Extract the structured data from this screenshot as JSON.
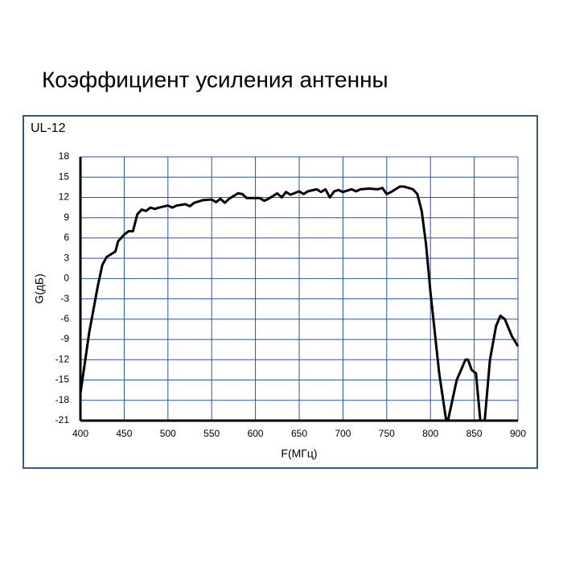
{
  "chart_data": {
    "type": "line",
    "title": "Коэффициент усиления антенны",
    "subtitle": "UL-12",
    "xlabel": "F(МГц)",
    "ylabel": "G(дБ)",
    "color": "#000000",
    "grid": true,
    "xlim": [
      400,
      900
    ],
    "ylim": [
      -21,
      18
    ],
    "xticks": [
      400,
      450,
      500,
      550,
      600,
      650,
      700,
      750,
      800,
      850,
      900
    ],
    "yticks": [
      18,
      15,
      12,
      9,
      6,
      3,
      0,
      -3,
      -6,
      -9,
      -12,
      -15,
      -18,
      -21
    ],
    "x": [
      400,
      410,
      420,
      425,
      430,
      440,
      443,
      450,
      455,
      460,
      465,
      470,
      475,
      480,
      485,
      490,
      500,
      505,
      510,
      520,
      525,
      530,
      540,
      550,
      555,
      560,
      565,
      570,
      580,
      585,
      590,
      600,
      605,
      610,
      615,
      625,
      630,
      635,
      640,
      650,
      655,
      660,
      670,
      675,
      680,
      685,
      690,
      695,
      700,
      710,
      715,
      720,
      730,
      740,
      745,
      750,
      755,
      765,
      770,
      780,
      785,
      790,
      795,
      800,
      810,
      818,
      820,
      830,
      840,
      843,
      847,
      852,
      857,
      862,
      868,
      875,
      880,
      885,
      893,
      900
    ],
    "values": [
      -17,
      -8,
      -1,
      2,
      3.2,
      4,
      5.5,
      6.5,
      7,
      7,
      9.5,
      10.2,
      10,
      10.5,
      10.3,
      10.5,
      10.8,
      10.5,
      10.8,
      11,
      10.7,
      11.2,
      11.6,
      11.7,
      11.3,
      11.8,
      11.2,
      11.8,
      12.6,
      12.5,
      11.9,
      11.9,
      11.9,
      11.5,
      11.8,
      12.6,
      12,
      12.8,
      12.4,
      12.9,
      12.5,
      12.9,
      13.2,
      12.8,
      13.2,
      12,
      12.9,
      13.1,
      12.8,
      13.2,
      12.9,
      13.2,
      13.3,
      13.2,
      13.4,
      12.5,
      12.8,
      13.6,
      13.6,
      13.2,
      12.5,
      10,
      5,
      -2,
      -14,
      -21,
      -21,
      -15,
      -12,
      -12,
      -13.5,
      -14,
      -21,
      -21,
      -12,
      -7,
      -5.5,
      -6,
      -8.5,
      -10
    ]
  }
}
